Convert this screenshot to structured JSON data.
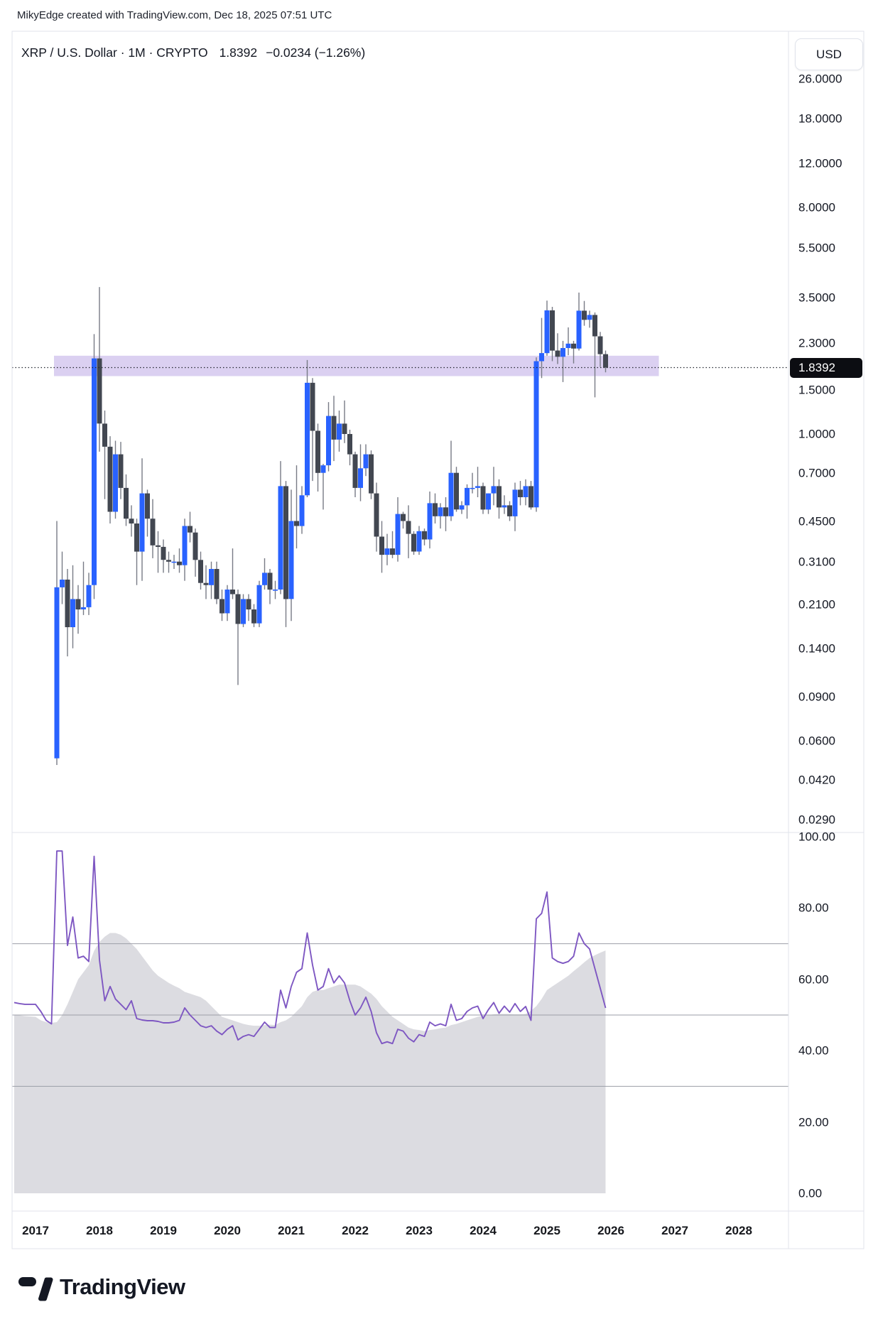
{
  "header": {
    "attribution": "MikyEdge created with TradingView.com, Dec 18, 2025 07:51 UTC"
  },
  "title_bar": {
    "symbol_title": "XRP / U.S. Dollar · 1M · CRYPTO",
    "last_price": "1.8392",
    "change": "−0.0234 (−1.26%)",
    "currency_button_label": "USD"
  },
  "price_scale": {
    "side": "right",
    "mode": "logarithmic",
    "tick_labels": [
      "26.0000",
      "18.0000",
      "12.0000",
      "8.0000",
      "5.5000",
      "3.5000",
      "2.3000",
      "1.5000",
      "1.0000",
      "0.7000",
      "0.4500",
      "0.3100",
      "0.2100",
      "0.1400",
      "0.0900",
      "0.0600",
      "0.0420",
      "0.0290"
    ],
    "tick_values": [
      26,
      18,
      12,
      8,
      5.5,
      3.5,
      2.3,
      1.5,
      1.0,
      0.7,
      0.45,
      0.31,
      0.21,
      0.14,
      0.09,
      0.06,
      0.042,
      0.029
    ],
    "current_price_label": "1.8392"
  },
  "rsi_scale": {
    "tick_labels": [
      "100.00",
      "80.00",
      "60.00",
      "40.00",
      "20.00",
      "0.00"
    ],
    "tick_values": [
      100,
      80,
      60,
      40,
      20,
      0
    ]
  },
  "time_scale": {
    "years": [
      "2017",
      "2018",
      "2019",
      "2020",
      "2021",
      "2022",
      "2023",
      "2024",
      "2025",
      "2026",
      "2027",
      "2028"
    ]
  },
  "footer": {
    "logo_text": "TradingView"
  },
  "colors": {
    "background": "#ffffff",
    "text": "#131722",
    "border": "#e0e3eb",
    "up_candle": "#2962ff",
    "down_candle": "#424751",
    "wick": "#787b86",
    "highlight_band": "rgba(137,100,207,0.30)",
    "current_price_line": "#22262f",
    "price_tag_bg": "#0c0d12",
    "rsi_line": "#7e57c2",
    "rsi_fill": "#dcdce1",
    "rsi_grid": "#9b9ea7"
  },
  "chart_data": {
    "type": "candlestick",
    "title": "XRP / U.S. Dollar · 1M · CRYPTO",
    "symbol": "XRP/USD",
    "interval": "1M",
    "exchange": "CRYPTO",
    "y_scale": "log",
    "legend_position": "top-left",
    "grid": "off",
    "x_axis": {
      "start_year": 2017,
      "end_year": 2028,
      "tick_years": [
        2017,
        2018,
        2019,
        2020,
        2021,
        2022,
        2023,
        2024,
        2025,
        2026,
        2027,
        2028
      ]
    },
    "y_axis_range": [
      0.029,
      26.0
    ],
    "current_price": 1.8392,
    "highlight_zone": {
      "price_top": 2.05,
      "price_bottom": 1.7,
      "start_month": "2017-05",
      "end_month": "2026-10"
    },
    "candles": {
      "start_month": "2017-05",
      "columns": [
        "open",
        "high",
        "low",
        "close"
      ],
      "ohlc": [
        [
          0.051,
          0.45,
          0.048,
          0.245
        ],
        [
          0.245,
          0.34,
          0.21,
          0.263
        ],
        [
          0.263,
          0.29,
          0.13,
          0.17
        ],
        [
          0.17,
          0.3,
          0.14,
          0.22
        ],
        [
          0.22,
          0.25,
          0.16,
          0.2
        ],
        [
          0.2,
          0.31,
          0.19,
          0.204
        ],
        [
          0.204,
          0.28,
          0.19,
          0.25
        ],
        [
          0.25,
          2.5,
          0.22,
          2.0
        ],
        [
          2.0,
          3.85,
          0.85,
          1.1
        ],
        [
          1.1,
          1.24,
          0.55,
          0.89
        ],
        [
          0.89,
          0.98,
          0.44,
          0.49
        ],
        [
          0.49,
          0.94,
          0.46,
          0.83
        ],
        [
          0.83,
          0.93,
          0.55,
          0.61
        ],
        [
          0.61,
          0.69,
          0.43,
          0.46
        ],
        [
          0.46,
          0.52,
          0.39,
          0.44
        ],
        [
          0.44,
          0.46,
          0.25,
          0.34
        ],
        [
          0.34,
          0.8,
          0.26,
          0.58
        ],
        [
          0.58,
          0.6,
          0.39,
          0.46
        ],
        [
          0.46,
          0.55,
          0.32,
          0.36
        ],
        [
          0.36,
          0.41,
          0.28,
          0.355
        ],
        [
          0.355,
          0.38,
          0.28,
          0.315
        ],
        [
          0.315,
          0.34,
          0.28,
          0.31
        ],
        [
          0.31,
          0.33,
          0.29,
          0.31
        ],
        [
          0.31,
          0.35,
          0.28,
          0.3
        ],
        [
          0.3,
          0.46,
          0.26,
          0.43
        ],
        [
          0.43,
          0.49,
          0.37,
          0.405
        ],
        [
          0.405,
          0.42,
          0.27,
          0.315
        ],
        [
          0.315,
          0.34,
          0.24,
          0.255
        ],
        [
          0.255,
          0.3,
          0.22,
          0.25
        ],
        [
          0.25,
          0.31,
          0.22,
          0.29
        ],
        [
          0.29,
          0.31,
          0.21,
          0.22
        ],
        [
          0.22,
          0.24,
          0.18,
          0.193
        ],
        [
          0.193,
          0.25,
          0.18,
          0.24
        ],
        [
          0.24,
          0.35,
          0.22,
          0.23
        ],
        [
          0.23,
          0.24,
          0.1,
          0.175
        ],
        [
          0.175,
          0.23,
          0.17,
          0.22
        ],
        [
          0.22,
          0.23,
          0.18,
          0.2
        ],
        [
          0.2,
          0.21,
          0.17,
          0.176
        ],
        [
          0.176,
          0.26,
          0.17,
          0.25
        ],
        [
          0.25,
          0.32,
          0.24,
          0.28
        ],
        [
          0.28,
          0.29,
          0.21,
          0.24
        ],
        [
          0.24,
          0.26,
          0.22,
          0.24
        ],
        [
          0.24,
          0.78,
          0.23,
          0.62
        ],
        [
          0.62,
          0.65,
          0.17,
          0.22
        ],
        [
          0.22,
          0.6,
          0.18,
          0.45
        ],
        [
          0.45,
          0.75,
          0.35,
          0.43
        ],
        [
          0.43,
          0.62,
          0.4,
          0.57
        ],
        [
          0.57,
          1.97,
          0.56,
          1.6
        ],
        [
          1.6,
          1.67,
          0.65,
          1.03
        ],
        [
          1.03,
          1.1,
          0.59,
          0.7
        ],
        [
          0.7,
          0.76,
          0.5,
          0.75
        ],
        [
          0.75,
          1.34,
          0.71,
          1.18
        ],
        [
          1.18,
          1.42,
          0.78,
          0.95
        ],
        [
          0.95,
          1.24,
          0.85,
          1.1
        ],
        [
          1.1,
          1.36,
          0.92,
          1.0
        ],
        [
          1.0,
          1.04,
          0.75,
          0.83
        ],
        [
          0.83,
          0.85,
          0.56,
          0.61
        ],
        [
          0.61,
          0.91,
          0.54,
          0.73
        ],
        [
          0.73,
          0.91,
          0.68,
          0.83
        ],
        [
          0.83,
          0.86,
          0.55,
          0.58
        ],
        [
          0.58,
          0.64,
          0.34,
          0.39
        ],
        [
          0.39,
          0.45,
          0.28,
          0.33
        ],
        [
          0.33,
          0.4,
          0.3,
          0.35
        ],
        [
          0.35,
          0.41,
          0.32,
          0.33
        ],
        [
          0.33,
          0.56,
          0.31,
          0.48
        ],
        [
          0.48,
          0.49,
          0.42,
          0.45
        ],
        [
          0.45,
          0.52,
          0.32,
          0.4
        ],
        [
          0.4,
          0.41,
          0.33,
          0.34
        ],
        [
          0.34,
          0.43,
          0.33,
          0.41
        ],
        [
          0.41,
          0.42,
          0.36,
          0.38
        ],
        [
          0.38,
          0.59,
          0.35,
          0.53
        ],
        [
          0.53,
          0.58,
          0.44,
          0.47
        ],
        [
          0.47,
          0.53,
          0.42,
          0.51
        ],
        [
          0.51,
          0.56,
          0.41,
          0.47
        ],
        [
          0.47,
          0.94,
          0.45,
          0.7
        ],
        [
          0.7,
          0.74,
          0.49,
          0.5
        ],
        [
          0.5,
          0.54,
          0.48,
          0.52
        ],
        [
          0.52,
          0.63,
          0.46,
          0.61
        ],
        [
          0.61,
          0.7,
          0.58,
          0.61
        ],
        [
          0.61,
          0.74,
          0.56,
          0.62
        ],
        [
          0.62,
          0.64,
          0.48,
          0.5
        ],
        [
          0.5,
          0.58,
          0.48,
          0.58
        ],
        [
          0.58,
          0.74,
          0.52,
          0.62
        ],
        [
          0.62,
          0.66,
          0.46,
          0.51
        ],
        [
          0.51,
          0.57,
          0.48,
          0.52
        ],
        [
          0.52,
          0.54,
          0.45,
          0.47
        ],
        [
          0.47,
          0.64,
          0.41,
          0.6
        ],
        [
          0.6,
          0.65,
          0.52,
          0.56
        ],
        [
          0.56,
          0.66,
          0.52,
          0.62
        ],
        [
          0.62,
          0.65,
          0.5,
          0.51
        ],
        [
          0.51,
          2.02,
          0.49,
          1.95
        ],
        [
          1.95,
          2.9,
          1.67,
          2.1
        ],
        [
          2.1,
          3.4,
          2.05,
          3.11
        ],
        [
          3.11,
          3.21,
          1.95,
          2.15
        ],
        [
          2.15,
          2.52,
          1.9,
          2.03
        ],
        [
          2.03,
          2.35,
          1.61,
          2.2
        ],
        [
          2.2,
          2.66,
          2.06,
          2.29
        ],
        [
          2.29,
          2.35,
          1.91,
          2.19
        ],
        [
          2.19,
          3.66,
          2.15,
          3.1
        ],
        [
          3.1,
          3.39,
          2.7,
          2.85
        ],
        [
          2.85,
          3.1,
          2.65,
          2.98
        ],
        [
          2.98,
          3.05,
          1.4,
          2.45
        ],
        [
          2.45,
          2.55,
          1.85,
          2.08
        ],
        [
          2.08,
          2.15,
          1.76,
          1.8392
        ]
      ]
    },
    "indicator": {
      "name": "RSI",
      "panel": "bottom",
      "range": [
        0,
        100
      ],
      "gridlines": [
        70,
        50,
        30
      ],
      "start_month": "2016-09",
      "rsi": [
        53.5,
        53.2,
        53.0,
        53.0,
        53,
        51,
        48.5,
        47.5,
        96,
        96,
        69.5,
        77.5,
        66,
        66.5,
        65,
        94.5,
        65.5,
        54,
        58,
        54.5,
        53,
        51.5,
        54,
        49,
        48.6,
        48.4,
        48.4,
        48.2,
        47.8,
        47.8,
        48,
        48.5,
        52,
        50,
        48.5,
        47,
        46.5,
        47,
        45.5,
        44.5,
        46,
        47,
        43,
        44,
        44.5,
        44,
        46,
        48,
        46.5,
        46.5,
        57,
        52,
        58,
        62,
        63,
        73,
        64,
        57,
        58,
        63,
        59,
        61,
        59,
        54,
        50,
        52,
        55,
        51,
        45,
        42,
        42.5,
        42,
        46,
        45.5,
        43.5,
        42.5,
        44.5,
        44,
        48,
        47,
        47.5,
        47,
        53,
        48.5,
        49,
        51,
        52,
        52.5,
        49,
        51.5,
        53.5,
        50.5,
        52.5,
        50.8,
        53.2,
        51,
        52.4,
        48.5,
        77,
        78.5,
        84.5,
        66,
        65,
        64.5,
        65,
        66.5,
        73,
        70,
        68.5,
        63,
        57.5,
        52
      ],
      "rsi_ma_area": [
        50,
        49.9,
        49.7,
        49.6,
        49.5,
        48.5,
        48,
        47.8,
        48,
        50,
        53,
        56.5,
        60,
        62,
        64,
        68,
        70.5,
        72,
        73,
        73,
        72.5,
        71.5,
        70,
        68.5,
        66.5,
        64.5,
        62.5,
        61,
        60,
        59,
        58.2,
        57.5,
        56.5,
        56,
        55.5,
        55,
        54,
        52.5,
        51,
        49.5,
        49,
        48.5,
        48,
        47.5,
        47.2,
        47,
        47,
        47.2,
        47.3,
        47.2,
        48,
        48.5,
        49.5,
        51,
        52.5,
        55,
        56.5,
        57,
        57,
        57.5,
        58,
        58.5,
        58.5,
        58.5,
        58.5,
        58,
        57,
        56,
        54.5,
        52.5,
        51,
        49.5,
        48.5,
        47.5,
        46.5,
        46,
        45.8,
        45.5,
        45.8,
        46,
        46.3,
        46.5,
        47.2,
        47.5,
        48,
        48.5,
        49,
        49.5,
        49.8,
        50,
        50.2,
        50.3,
        50.3,
        50.3,
        50.2,
        50.2,
        50.3,
        51.2,
        52.5,
        54.5,
        57,
        58,
        59,
        60,
        61,
        62.3,
        63.5,
        64.8,
        66,
        66.8,
        67.5,
        68.1
      ]
    }
  }
}
